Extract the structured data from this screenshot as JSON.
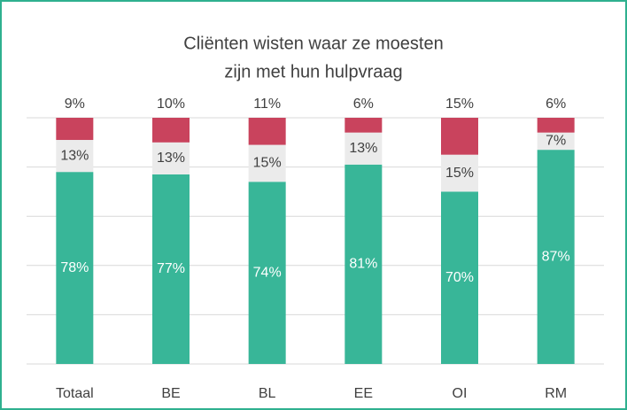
{
  "chart_data": {
    "type": "stacked-bar",
    "title": [
      "Cliënten wisten waar ze moesten",
      "zijn met hun hulpvraag"
    ],
    "categories": [
      "Totaal",
      "BE",
      "BL",
      "EE",
      "OI",
      "RM"
    ],
    "series": [
      {
        "color": "#38b698",
        "values": [
          78,
          77,
          74,
          81,
          70,
          87
        ],
        "value_labels": [
          "78%",
          "77%",
          "74%",
          "81%",
          "70%",
          "87%"
        ]
      },
      {
        "color": "#ebebeb",
        "values": [
          13,
          13,
          15,
          13,
          15,
          7
        ],
        "value_labels": [
          "13%",
          "13%",
          "15%",
          "13%",
          "15%",
          "7%"
        ]
      },
      {
        "color": "#c9435d",
        "values": [
          9,
          10,
          11,
          6,
          15,
          6
        ],
        "value_labels": [
          "9%",
          "10%",
          "11%",
          "6%",
          "15%",
          "6%"
        ]
      }
    ],
    "ylim": [
      0,
      100
    ],
    "yticks": [
      0,
      20,
      40,
      60,
      80,
      100
    ],
    "grid": true,
    "border_color": "#2fb08f"
  }
}
